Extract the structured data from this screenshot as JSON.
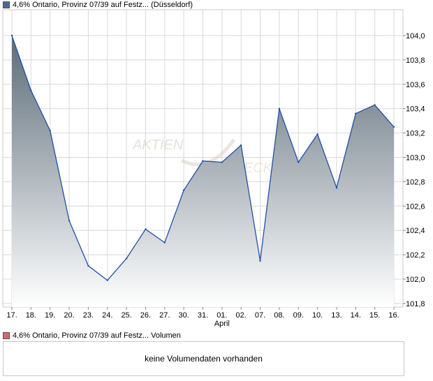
{
  "price_legend": {
    "label": "4,6% Ontario, Provinz 07/39 auf Festz... (Düsseldorf)",
    "color": "#4a6a9a"
  },
  "volume_legend": {
    "label": "4,6% Ontario, Provinz 07/39 auf Festz... Volumen",
    "color": "#d66a6a"
  },
  "volume_panel": {
    "message": "keine Volumendaten vorhanden"
  },
  "watermark": "AKTIENCHECK",
  "chart_data": {
    "type": "area",
    "categories": [
      "17.",
      "18.",
      "19.",
      "20.",
      "23.",
      "24.",
      "25.",
      "26.",
      "27.",
      "30.",
      "31.",
      "01.",
      "02.",
      "07.",
      "08.",
      "09.",
      "10.",
      "13.",
      "14.",
      "15.",
      "16."
    ],
    "month_label": {
      "under": "01.",
      "text": "April"
    },
    "series": [
      {
        "values": [
          104.0,
          103.55,
          103.22,
          102.48,
          102.11,
          101.99,
          102.17,
          102.41,
          102.3,
          102.73,
          102.97,
          102.96,
          103.1,
          102.15,
          103.4,
          102.96,
          103.19,
          102.75,
          103.36,
          103.43,
          103.25
        ]
      }
    ],
    "ylim": [
      101.8,
      104.1
    ],
    "yticks": [
      "104,0",
      "103,8",
      "103,6",
      "103,4",
      "103,2",
      "103,0",
      "102,8",
      "102,6",
      "102,4",
      "102,2",
      "102,0",
      "101,8"
    ],
    "ytick_values": [
      104.0,
      103.8,
      103.6,
      103.4,
      103.2,
      103.0,
      102.8,
      102.6,
      102.4,
      102.2,
      102.0,
      101.8
    ],
    "grid": true,
    "line_color": "#1f4fa8",
    "fill_top": "#5c6c78",
    "fill_bottom": "#ffffff"
  }
}
